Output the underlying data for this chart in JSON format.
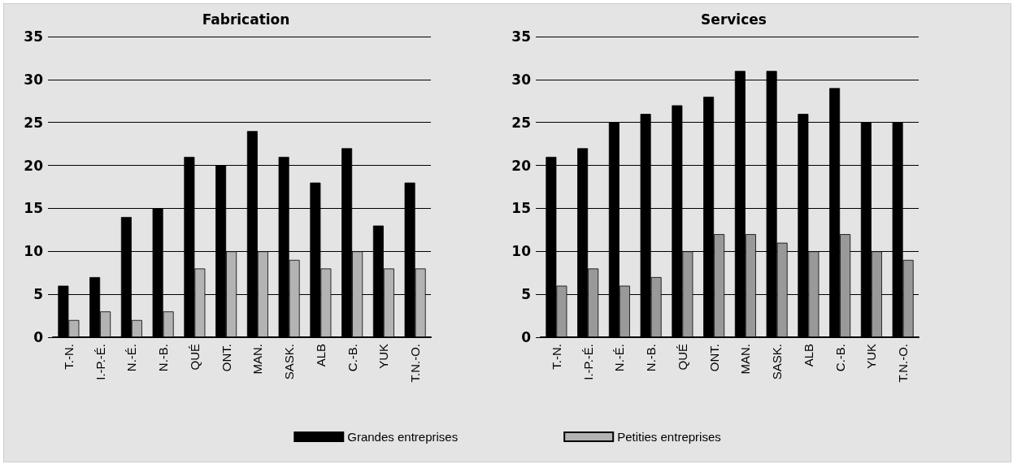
{
  "chart_data": [
    {
      "type": "bar",
      "title": "Fabrication",
      "categories": [
        "T.-N.",
        "I.-P.-É.",
        "N.-É.",
        "N.-B.",
        "QUÉ",
        "ONT.",
        "MAN.",
        "SASK.",
        "ALB",
        "C.-B.",
        "YUK",
        "T.N.-O."
      ],
      "series": [
        {
          "name": "Grandes entreprises",
          "color": "#000000",
          "values": [
            6,
            7,
            14,
            15,
            21,
            20,
            24,
            21,
            18,
            22,
            13,
            18
          ]
        },
        {
          "name": "Petities entreprises",
          "color": "#b3b3b3",
          "values": [
            2,
            3,
            2,
            3,
            8,
            10,
            10,
            9,
            8,
            10,
            8,
            8
          ]
        }
      ],
      "ylim": [
        0,
        35
      ],
      "yticks": [
        0,
        5,
        10,
        15,
        20,
        25,
        30,
        35
      ],
      "grid": "y",
      "legend": "bottom"
    },
    {
      "type": "bar",
      "title": "Services",
      "categories": [
        "T.-N.",
        "I.-P.-É.",
        "N.-É.",
        "N.-B.",
        "QUÉ",
        "ONT.",
        "MAN.",
        "SASK.",
        "ALB",
        "C.-B.",
        "YUK",
        "T.N.-O."
      ],
      "series": [
        {
          "color": "#000000",
          "values": [
            21,
            22,
            25,
            26,
            27,
            28,
            31,
            31,
            26,
            29,
            25,
            25
          ]
        },
        {
          "color": "#999999",
          "values": [
            6,
            8,
            6,
            7,
            10,
            12,
            12,
            11,
            10,
            12,
            10,
            9
          ]
        }
      ],
      "ylim": [
        0,
        35
      ],
      "yticks": [
        0,
        5,
        10,
        15,
        20,
        25,
        30,
        35
      ],
      "grid": "y"
    }
  ]
}
